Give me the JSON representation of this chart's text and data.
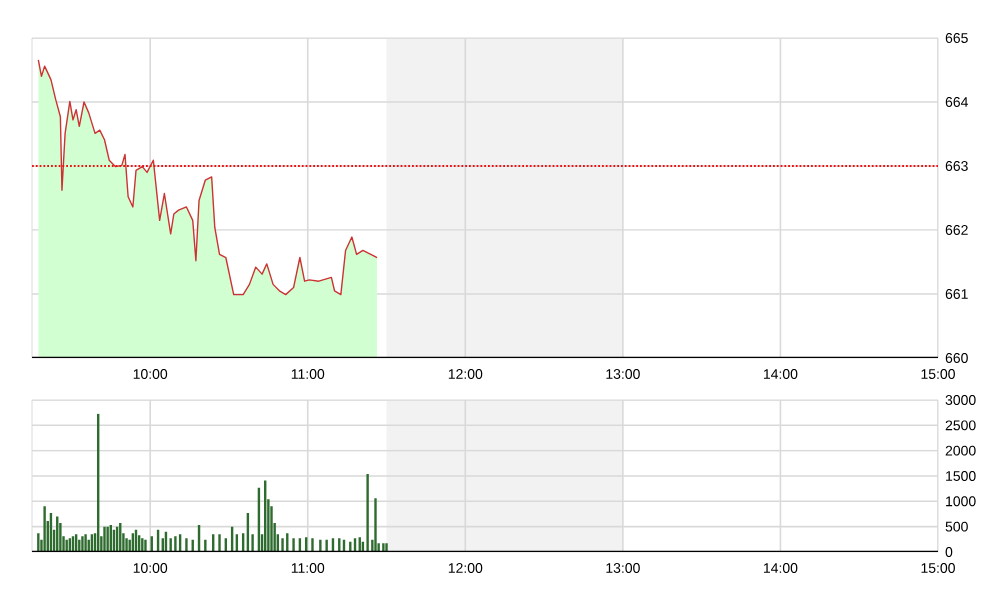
{
  "chart_data": [
    {
      "type": "line",
      "xlim": [
        9.25,
        15
      ],
      "ylim": [
        660,
        665
      ],
      "grid": true,
      "marker": "none",
      "xticks": [
        {
          "value": 10,
          "label": "10:00"
        },
        {
          "value": 11,
          "label": "11:00"
        },
        {
          "value": 12,
          "label": "12:00"
        },
        {
          "value": 13,
          "label": "13:00"
        },
        {
          "value": 14,
          "label": "14:00"
        },
        {
          "value": 15,
          "label": "15:00"
        }
      ],
      "yticks": [
        660,
        661,
        662,
        663,
        664,
        665
      ],
      "x": [
        9.29,
        9.31,
        9.33,
        9.37,
        9.4,
        9.43,
        9.44,
        9.46,
        9.49,
        9.51,
        9.53,
        9.55,
        9.58,
        9.61,
        9.65,
        9.68,
        9.71,
        9.74,
        9.78,
        9.82,
        9.84,
        9.86,
        9.89,
        9.91,
        9.95,
        9.98,
        10.02,
        10.06,
        10.09,
        10.13,
        10.15,
        10.18,
        10.23,
        10.27,
        10.29,
        10.31,
        10.35,
        10.39,
        10.41,
        10.44,
        10.48,
        10.53,
        10.59,
        10.63,
        10.67,
        10.71,
        10.74,
        10.78,
        10.82,
        10.86,
        10.91,
        10.95,
        10.98,
        11.01,
        11.07,
        11.15,
        11.17,
        11.21,
        11.24,
        11.28,
        11.31,
        11.35,
        11.4,
        11.44
      ],
      "series": [
        {
          "type": "line",
          "color": "#cc3333",
          "lower": [
            660,
            660,
            660,
            660,
            660,
            660,
            660,
            660,
            660,
            660,
            660,
            660,
            660,
            660,
            660,
            660,
            660,
            660,
            660,
            660,
            660,
            660,
            660,
            660,
            660,
            660,
            660,
            660,
            660,
            660,
            660,
            660,
            660,
            660,
            660,
            660,
            660,
            660,
            660,
            660,
            660,
            660,
            660,
            660,
            660,
            660,
            660,
            660,
            660,
            660,
            660,
            660,
            660,
            660,
            660,
            660,
            660,
            660,
            660,
            660,
            660,
            660,
            660,
            660
          ],
          "upper": [
            664.66,
            664.4,
            664.56,
            664.35,
            664.04,
            663.77,
            662.62,
            663.51,
            664.01,
            663.72,
            663.88,
            663.62,
            664.0,
            663.83,
            663.51,
            663.56,
            663.41,
            663.09,
            662.99,
            663.01,
            663.18,
            662.52,
            662.36,
            662.93,
            662.99,
            662.9,
            663.09,
            662.15,
            662.57,
            661.94,
            662.25,
            662.31,
            662.36,
            662.15,
            661.52,
            662.46,
            662.78,
            662.83,
            662.04,
            661.62,
            661.57,
            660.99,
            660.99,
            661.15,
            661.42,
            661.31,
            661.47,
            661.15,
            661.05,
            660.99,
            661.1,
            661.57,
            661.2,
            661.22,
            661.2,
            661.26,
            661.05,
            660.99,
            661.68,
            661.89,
            661.62,
            661.68,
            661.62,
            661.57
          ],
          "values": [
            664.66,
            664.4,
            664.56,
            664.35,
            664.04,
            663.77,
            662.62,
            663.51,
            664.01,
            663.72,
            663.88,
            663.62,
            664.0,
            663.83,
            663.51,
            663.56,
            663.41,
            663.09,
            662.99,
            663.01,
            663.18,
            662.52,
            662.36,
            662.93,
            662.99,
            662.9,
            663.09,
            662.15,
            662.57,
            661.94,
            662.25,
            662.31,
            662.36,
            662.15,
            661.52,
            662.46,
            662.78,
            662.83,
            662.04,
            661.62,
            661.57,
            660.99,
            660.99,
            661.15,
            661.42,
            661.31,
            661.47,
            661.15,
            661.05,
            660.99,
            661.1,
            661.57,
            661.2,
            661.22,
            661.2,
            661.26,
            661.05,
            660.99,
            661.68,
            661.89,
            661.62,
            661.68,
            661.62,
            661.57
          ]
        }
      ],
      "ref_lines": [
        {
          "axis": "y",
          "value": 663,
          "color": "#ee1111",
          "line_style": "dotted"
        }
      ],
      "bands": [
        {
          "axis": "x",
          "from": 11.5,
          "to": 13,
          "color": "#f2f2f2"
        }
      ]
    },
    {
      "type": "bar",
      "xlim": [
        9.25,
        15
      ],
      "ylim": [
        0,
        3000
      ],
      "grid": true,
      "xticks": [
        {
          "value": 10,
          "label": "10:00"
        },
        {
          "value": 11,
          "label": "11:00"
        },
        {
          "value": 12,
          "label": "12:00"
        },
        {
          "value": 13,
          "label": "13:00"
        },
        {
          "value": 14,
          "label": "14:00"
        },
        {
          "value": 15,
          "label": "15:00"
        }
      ],
      "yticks": [
        0,
        500,
        1000,
        1500,
        2000,
        2500,
        3000
      ],
      "x": [
        9.29,
        9.31,
        9.33,
        9.35,
        9.37,
        9.39,
        9.41,
        9.43,
        9.45,
        9.47,
        9.49,
        9.51,
        9.53,
        9.55,
        9.57,
        9.59,
        9.61,
        9.63,
        9.65,
        9.67,
        9.69,
        9.71,
        9.73,
        9.75,
        9.77,
        9.79,
        9.81,
        9.83,
        9.85,
        9.87,
        9.89,
        9.91,
        9.93,
        9.95,
        9.97,
        10.01,
        10.05,
        10.08,
        10.1,
        10.13,
        10.16,
        10.19,
        10.23,
        10.27,
        10.31,
        10.35,
        10.4,
        10.44,
        10.48,
        10.52,
        10.55,
        10.59,
        10.62,
        10.65,
        10.69,
        10.71,
        10.73,
        10.75,
        10.77,
        10.79,
        10.81,
        10.84,
        10.87,
        10.91,
        10.95,
        10.99,
        11.03,
        11.08,
        11.12,
        11.16,
        11.2,
        11.23,
        11.27,
        11.3,
        11.33,
        11.35,
        11.38,
        11.41,
        11.43,
        11.45,
        11.48,
        11.5
      ],
      "series": [
        {
          "color": "#2e6b2e",
          "values": [
            370,
            240,
            900,
            610,
            770,
            440,
            700,
            570,
            310,
            240,
            270,
            310,
            350,
            240,
            310,
            350,
            240,
            350,
            370,
            2730,
            310,
            500,
            500,
            530,
            440,
            500,
            570,
            370,
            270,
            240,
            370,
            440,
            330,
            270,
            240,
            310,
            440,
            270,
            400,
            270,
            310,
            350,
            270,
            240,
            530,
            240,
            350,
            350,
            270,
            500,
            350,
            370,
            770,
            350,
            1270,
            350,
            1410,
            1040,
            900,
            570,
            350,
            270,
            370,
            270,
            270,
            290,
            270,
            240,
            240,
            270,
            270,
            240,
            200,
            270,
            290,
            200,
            1540,
            240,
            1060,
            170,
            170,
            170
          ]
        }
      ],
      "bands": [
        {
          "axis": "x",
          "from": 11.5,
          "to": 13,
          "color": "#f2f2f2"
        }
      ]
    }
  ]
}
